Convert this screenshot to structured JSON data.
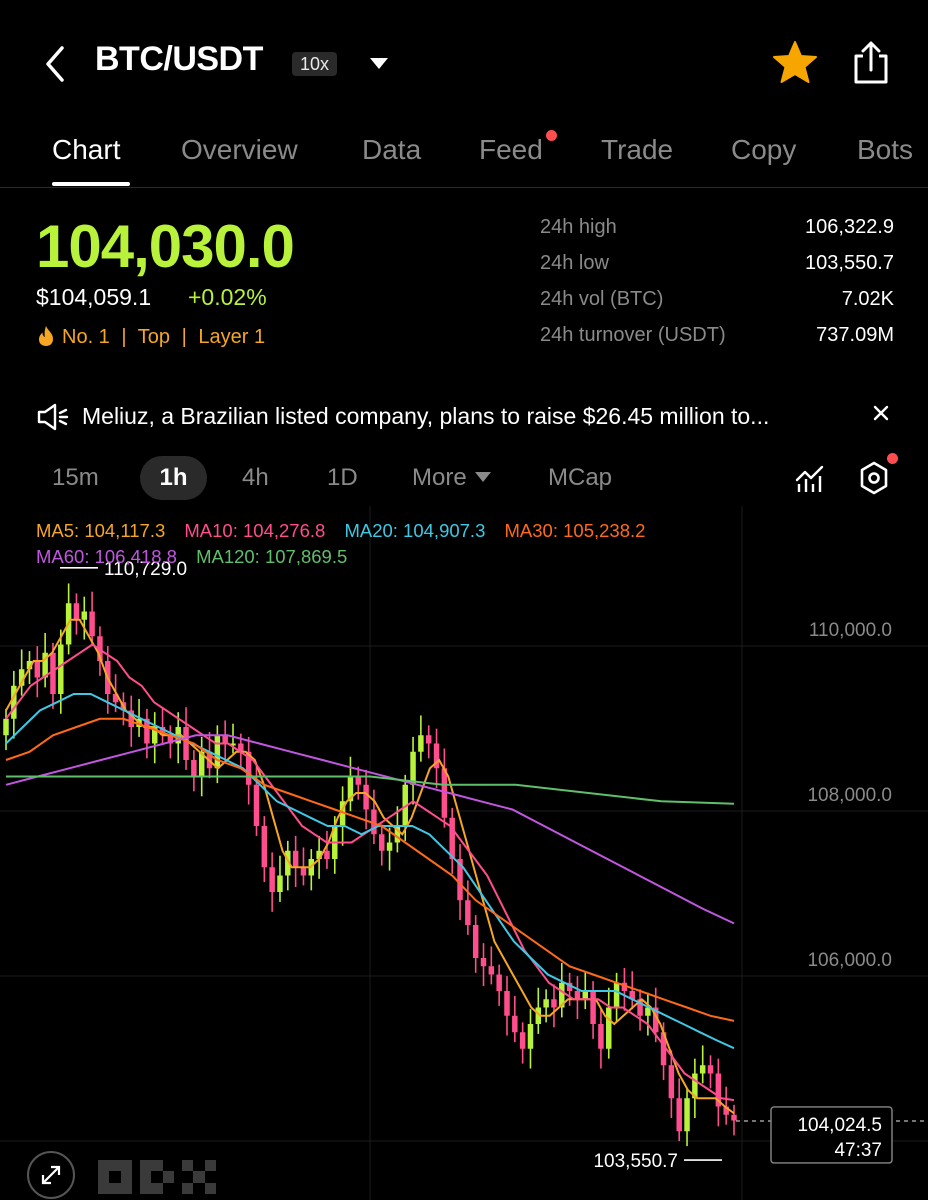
{
  "header": {
    "pair": "BTC/USDT",
    "leverage": "10x"
  },
  "tabs": [
    {
      "label": "Chart"
    },
    {
      "label": "Overview"
    },
    {
      "label": "Data"
    },
    {
      "label": "Feed"
    },
    {
      "label": "Trade"
    },
    {
      "label": "Copy"
    },
    {
      "label": "Bots"
    }
  ],
  "price": {
    "last": "104,030.0",
    "usd": "$104,059.1",
    "change": "+0.02%",
    "tags": [
      "No. 1",
      "|",
      "Top",
      "|",
      "Layer 1"
    ]
  },
  "stats": [
    {
      "label": "24h high",
      "value": "106,322.9"
    },
    {
      "label": "24h low",
      "value": "103,550.7"
    },
    {
      "label": "24h vol (BTC)",
      "value": "7.02K"
    },
    {
      "label": "24h turnover (USDT)",
      "value": "737.09M"
    }
  ],
  "news": {
    "text": "Meliuz, a Brazilian listed company, plans to raise $26.45 million to..."
  },
  "intervals": [
    "15m",
    "1h",
    "4h",
    "1D",
    "More",
    "MCap"
  ],
  "ma": [
    {
      "label": "MA5: 104,117.3",
      "color": "#f5a623"
    },
    {
      "label": "MA10: 104,276.8",
      "color": "#ff4d8d"
    },
    {
      "label": "MA20: 104,907.3",
      "color": "#3fc8e4"
    },
    {
      "label": "MA30: 105,238.2",
      "color": "#ff6a1a"
    },
    {
      "label": "MA60: 106,418.8",
      "color": "#c157e0"
    },
    {
      "label": "MA120: 107,869.5",
      "color": "#5fbf6a"
    }
  ],
  "chart_data": {
    "type": "candlestick",
    "interval": "1h",
    "y_ticks": [
      "110,000.0",
      "108,000.0",
      "106,000.0",
      "104,000.0"
    ],
    "y_tick_values": [
      110000,
      108000,
      106000,
      104000
    ],
    "high_marker": "110,729.0",
    "low_marker": "103,550.7",
    "current_price": "104,024.5",
    "countdown": "47:37",
    "colors": {
      "up": "#b8f23a",
      "down": "#ff4d8d"
    },
    "closes": [
      108900,
      109300,
      109500,
      109600,
      109400,
      109700,
      109200,
      109800,
      110300,
      110100,
      110200,
      109900,
      109600,
      109200,
      109100,
      109000,
      108800,
      108900,
      108600,
      108800,
      108700,
      108600,
      108800,
      108400,
      108200,
      108500,
      108300,
      108700,
      108600,
      108600,
      108500,
      108100,
      107600,
      107100,
      106800,
      107000,
      107300,
      107100,
      107000,
      107200,
      107300,
      107200,
      107600,
      107900,
      108200,
      108100,
      107800,
      107500,
      107300,
      107400,
      107600,
      108100,
      108500,
      108700,
      108600,
      108300,
      107700,
      107200,
      106700,
      106400,
      106000,
      105900,
      105800,
      105600,
      105300,
      105100,
      104900,
      105200,
      105400,
      105500,
      105400,
      105700,
      105600,
      105500,
      105600,
      105200,
      104900,
      105400,
      105700,
      105600,
      105500,
      105300,
      105400,
      105100,
      104700,
      104300,
      103900,
      104300,
      104600,
      104700,
      104600,
      104200,
      104100,
      104030
    ],
    "opens": [
      108700,
      108900,
      109300,
      109500,
      109600,
      109400,
      109700,
      109200,
      109800,
      110300,
      110100,
      110200,
      109900,
      109600,
      109200,
      109100,
      109000,
      108800,
      108900,
      108600,
      108800,
      108700,
      108600,
      108800,
      108400,
      108200,
      108500,
      108300,
      108700,
      108600,
      108600,
      108500,
      108100,
      107600,
      107100,
      106800,
      107000,
      107300,
      107100,
      107000,
      107200,
      107300,
      107200,
      107600,
      107900,
      108200,
      108100,
      107800,
      107500,
      107300,
      107400,
      107600,
      108100,
      108500,
      108700,
      108600,
      108300,
      107700,
      107200,
      106700,
      106400,
      106000,
      105900,
      105800,
      105600,
      105300,
      105100,
      104900,
      105200,
      105400,
      105500,
      105400,
      105700,
      105600,
      105500,
      105600,
      105200,
      104900,
      105400,
      105700,
      105600,
      105500,
      105300,
      105400,
      105100,
      104700,
      104300,
      103900,
      104300,
      104600,
      104700,
      104600,
      104200,
      104100
    ],
    "ma_series": {
      "MA5": [
        109000,
        109200,
        109400,
        109600,
        109600,
        109700,
        109900,
        110100,
        110100,
        109900,
        109700,
        109400,
        109200,
        109000,
        108900,
        108800,
        108800,
        108700,
        108700,
        108700,
        108600,
        108500,
        108400,
        108300,
        108400,
        108500,
        108500,
        108400,
        108100,
        107700,
        107300,
        107100,
        107100,
        107100,
        107200,
        107400,
        107700,
        107900,
        108000,
        108000,
        107900,
        107700,
        107600,
        107500,
        107700,
        108000,
        108300,
        108400,
        108200,
        107800,
        107400,
        107000,
        106600,
        106200,
        106000,
        105800,
        105600,
        105400,
        105300,
        105300,
        105400,
        105500,
        105500,
        105500,
        105500,
        105300,
        105200,
        105300,
        105400,
        105500,
        105400,
        105200,
        104900,
        104600,
        104400,
        104300,
        104300,
        104300,
        104200,
        104117
      ],
      "MA10": [
        108900,
        109100,
        109300,
        109400,
        109500,
        109600,
        109700,
        109800,
        109700,
        109600,
        109400,
        109300,
        109100,
        109000,
        108900,
        108800,
        108700,
        108600,
        108600,
        108500,
        108400,
        108200,
        108000,
        107800,
        107600,
        107500,
        107400,
        107400,
        107400,
        107500,
        107600,
        107700,
        107800,
        107900,
        107800,
        107700,
        107600,
        107400,
        107200,
        107000,
        106700,
        106400,
        106100,
        105900,
        105700,
        105600,
        105500,
        105500,
        105500,
        105400,
        105400,
        105300,
        105200,
        105000,
        104800,
        104600,
        104500,
        104400,
        104300,
        104277
      ],
      "MA20": [
        108600,
        108800,
        109000,
        109100,
        109200,
        109200,
        109100,
        109000,
        108900,
        108800,
        108700,
        108600,
        108500,
        108400,
        108300,
        108100,
        107900,
        107800,
        107700,
        107600,
        107600,
        107500,
        107600,
        107600,
        107600,
        107500,
        107300,
        107100,
        106800,
        106500,
        106200,
        106000,
        105800,
        105700,
        105600,
        105600,
        105600,
        105500,
        105400,
        105300,
        105200,
        105100,
        105000,
        104907
      ],
      "MA30": [
        108400,
        108500,
        108700,
        108800,
        108900,
        108900,
        108800,
        108700,
        108600,
        108400,
        108300,
        108100,
        108000,
        107900,
        107800,
        107700,
        107600,
        107400,
        107200,
        107000,
        106700,
        106500,
        106300,
        106100,
        105900,
        105800,
        105700,
        105600,
        105500,
        105400,
        105300,
        105238
      ],
      "MA60": [
        108100,
        108200,
        108300,
        108400,
        108500,
        108600,
        108700,
        108700,
        108600,
        108500,
        108400,
        108300,
        108200,
        108100,
        108000,
        107900,
        107800,
        107600,
        107400,
        107200,
        107000,
        106800,
        106600,
        106419
      ],
      "MA120": [
        108200,
        108200,
        108200,
        108200,
        108200,
        108200,
        108100,
        108100,
        108000,
        107900,
        107870
      ]
    }
  }
}
